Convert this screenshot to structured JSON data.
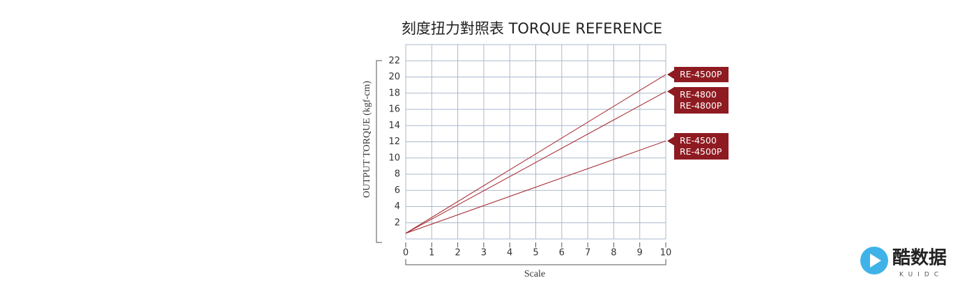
{
  "chart_data": {
    "type": "line",
    "title": "刻度扭力對照表 TORQUE REFERENCE",
    "x_label": "Scale",
    "y_label": "OUTPUT TORQUE (kgf-cm)",
    "x": [
      0,
      10
    ],
    "xlim": [
      0,
      10
    ],
    "xticks": [
      0,
      1,
      2,
      3,
      4,
      5,
      6,
      7,
      8,
      9,
      10
    ],
    "ylim": [
      0,
      24
    ],
    "yticks": [
      2,
      4,
      6,
      8,
      10,
      12,
      14,
      16,
      18,
      20,
      22
    ],
    "grid": true,
    "series": [
      {
        "name": "RE-4500P",
        "color": "#a3232b",
        "values": [
          0.7,
          20.3
        ]
      },
      {
        "name": "RE-4800\nRE-4800P",
        "color": "#a3232b",
        "values": [
          0.7,
          18.2
        ]
      },
      {
        "name": "RE-4500\nRE-4500P",
        "color": "#a3232b",
        "values": [
          0.7,
          12.1
        ]
      }
    ]
  },
  "watermark": {
    "text": "酷数据",
    "sub": "KUIDC"
  }
}
